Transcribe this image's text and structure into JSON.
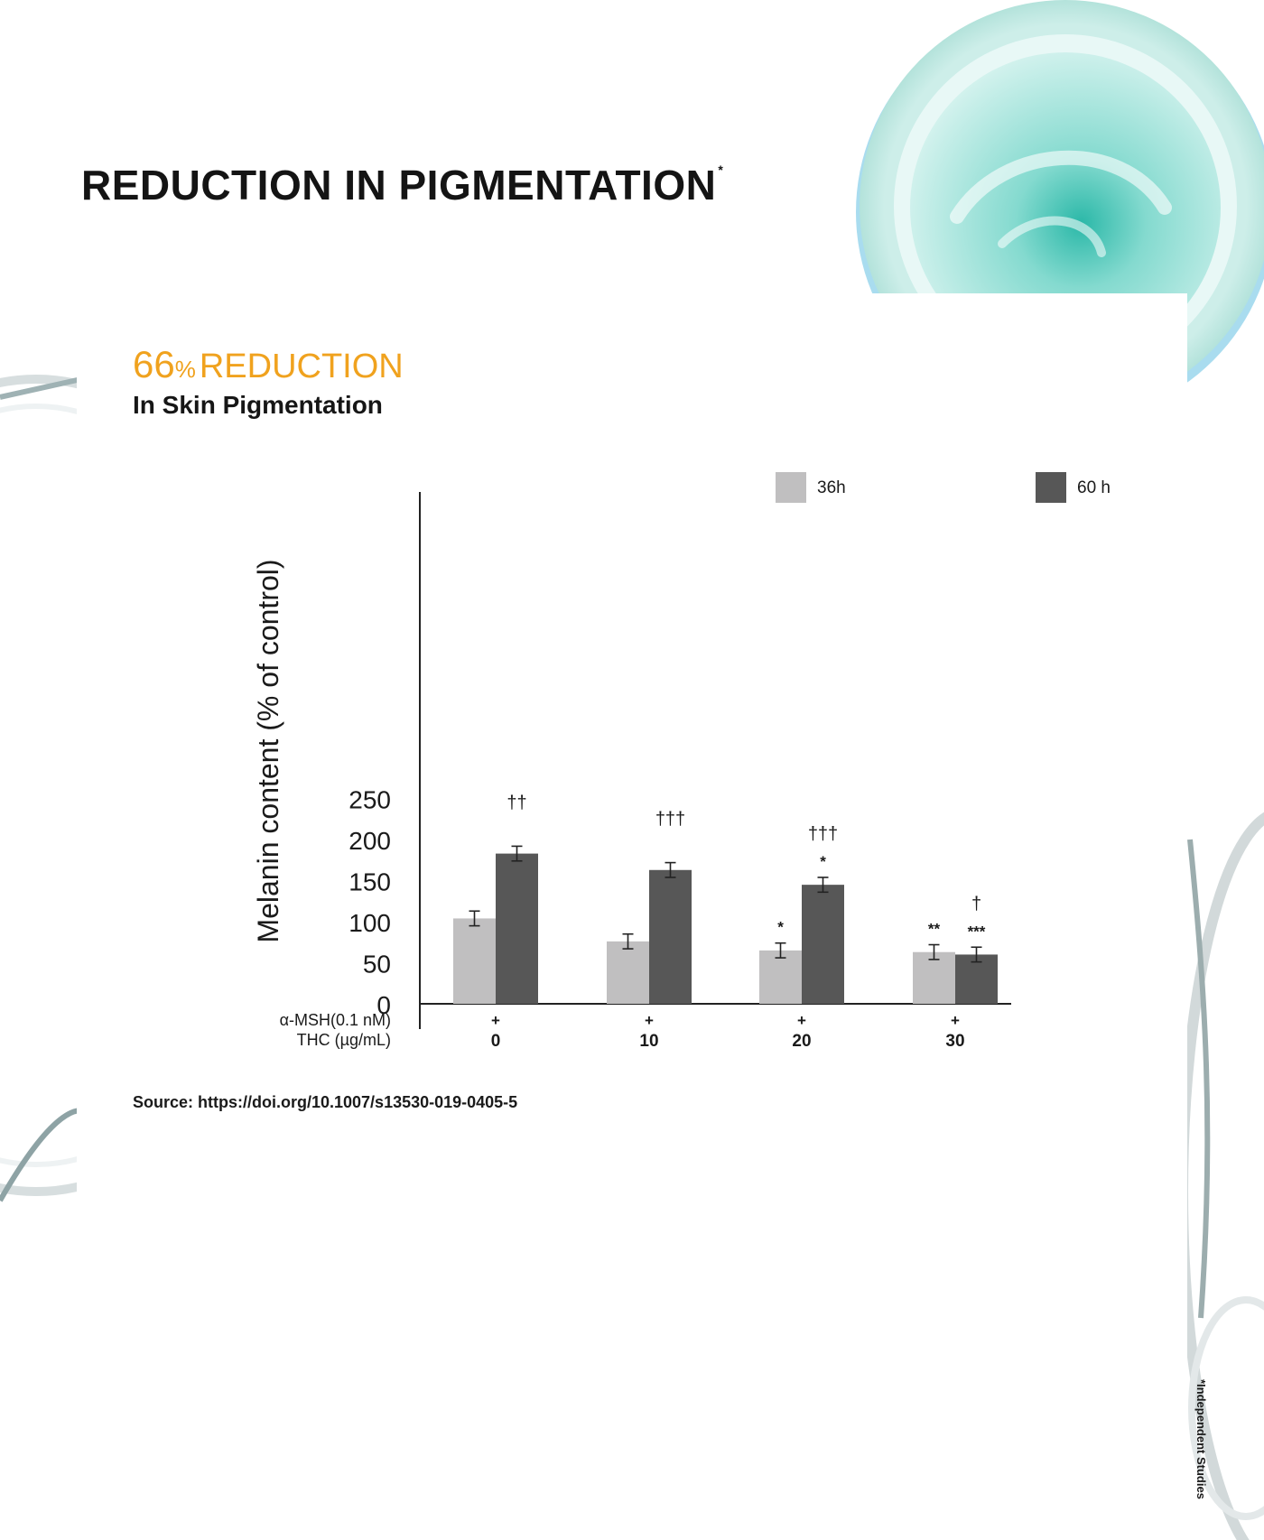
{
  "page": {
    "title": "REDUCTION IN PIGMENTATION",
    "title_mark": "*",
    "headline_number": "66",
    "headline_percent": "%",
    "headline_word": "REDUCTION",
    "subheadline": "In Skin Pigmentation",
    "source": "Source: https://doi.org/10.1007/s13530-019-0405-5",
    "footnote": "*Independent Studies"
  },
  "colors": {
    "accent": "#f0a21e",
    "series_36h": "#c0bfc0",
    "series_60h": "#575757",
    "cream": "#7fd8cf",
    "jar_blue": "#8fc8e6"
  },
  "decor": [
    "cosmetic-cream-jar-image",
    "glass-dish-rings"
  ],
  "chart_data": {
    "type": "bar",
    "title": "",
    "xlabel": "",
    "ylabel": "Melanin content (% of control)",
    "ylim": [
      0,
      300
    ],
    "yticks": [
      0,
      50,
      100,
      150,
      200,
      250
    ],
    "grid": false,
    "legend_position": "top-right",
    "row_labels": [
      "α-MSH(0.1 nM)",
      "THC (µg/mL)"
    ],
    "categories": [
      "0",
      "10",
      "20",
      "30"
    ],
    "msh": [
      "+",
      "+",
      "+",
      "+"
    ],
    "series": [
      {
        "name": "36h",
        "values": [
          104,
          76,
          65,
          63
        ],
        "errors": [
          9,
          9,
          9,
          9
        ],
        "marks": [
          "",
          "",
          "*",
          "**"
        ]
      },
      {
        "name": "60 h",
        "values": [
          183,
          163,
          145,
          60
        ],
        "errors": [
          9,
          9,
          9,
          9
        ],
        "marks": [
          "††\n",
          "†††\n",
          "†††\n*",
          "†\n***"
        ]
      }
    ]
  }
}
